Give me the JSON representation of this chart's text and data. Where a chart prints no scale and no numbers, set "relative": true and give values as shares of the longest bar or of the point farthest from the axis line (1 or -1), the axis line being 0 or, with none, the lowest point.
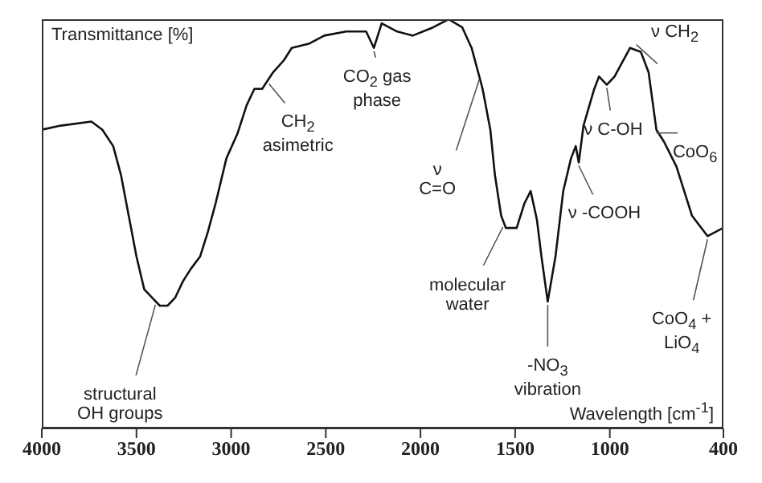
{
  "chart_data": {
    "type": "line",
    "relative": true,
    "ylabel": "Transmittance [%]",
    "xlabel": "Wavelength [cm$^{-1}$]",
    "x": [
      4000,
      3900,
      3738,
      3680,
      3623,
      3582,
      3541,
      3500,
      3459,
      3418,
      3377,
      3336,
      3295,
      3254,
      3213,
      3164,
      3123,
      3082,
      3025,
      2967,
      2918,
      2877,
      2836,
      2779,
      2721,
      2680,
      2590,
      2508,
      2393,
      2287,
      2246,
      2205,
      2123,
      2041,
      1934,
      1852,
      1779,
      1730,
      1672,
      1631,
      1607,
      1574,
      1549,
      1492,
      1451,
      1418,
      1385,
      1361,
      1328,
      1287,
      1246,
      1205,
      1180,
      1164,
      1139,
      1082,
      1057,
      1016,
      975,
      893,
      836,
      795,
      754,
      713,
      648,
      566,
      484,
      402
    ],
    "series": [
      {
        "color": "#111111",
        "values": [
          0.73,
          0.74,
          0.75,
          0.73,
          0.69,
          0.62,
          0.52,
          0.42,
          0.34,
          0.32,
          0.3,
          0.3,
          0.32,
          0.36,
          0.39,
          0.42,
          0.48,
          0.55,
          0.66,
          0.72,
          0.79,
          0.83,
          0.83,
          0.87,
          0.9,
          0.93,
          0.94,
          0.96,
          0.97,
          0.97,
          0.93,
          0.99,
          0.97,
          0.96,
          0.98,
          1.0,
          0.98,
          0.93,
          0.83,
          0.73,
          0.62,
          0.52,
          0.49,
          0.49,
          0.55,
          0.58,
          0.51,
          0.42,
          0.31,
          0.42,
          0.58,
          0.66,
          0.69,
          0.65,
          0.74,
          0.83,
          0.86,
          0.84,
          0.86,
          0.93,
          0.92,
          0.87,
          0.73,
          0.7,
          0.64,
          0.52,
          0.47,
          0.49
        ]
      }
    ],
    "xlim": [
      4000,
      400
    ],
    "xticks": [
      4000,
      3500,
      3000,
      2500,
      2000,
      1500,
      1000,
      400
    ],
    "tick_labels": "x",
    "grid": false,
    "legend": false,
    "marker": "none",
    "line_style": "solid",
    "annotations": [
      {
        "text": "structural OH groups",
        "x": 3400,
        "y": 0.31
      },
      {
        "text": "CH$_{2}$ asimetric",
        "x": 2800,
        "y": 0.85
      },
      {
        "text": "CO$_{2}$ gas phase",
        "x": 2246,
        "y": 0.93
      },
      {
        "text": "ν C=O",
        "x": 1690,
        "y": 0.86
      },
      {
        "text": "molecular water",
        "x": 1565,
        "y": 0.5
      },
      {
        "text": "-NO$_{3}$ vibration",
        "x": 1328,
        "y": 0.31
      },
      {
        "text": "ν -COOH",
        "x": 1164,
        "y": 0.65
      },
      {
        "text": "ν C-OH",
        "x": 1016,
        "y": 0.84
      },
      {
        "text": "ν CH$_{2}$",
        "x": 860,
        "y": 0.93
      },
      {
        "text": "CoO$_{6}$",
        "x": 754,
        "y": 0.73
      },
      {
        "text": "CoO$_{4}$ + LiO$_{4}$",
        "x": 484,
        "y": 0.47
      }
    ]
  }
}
